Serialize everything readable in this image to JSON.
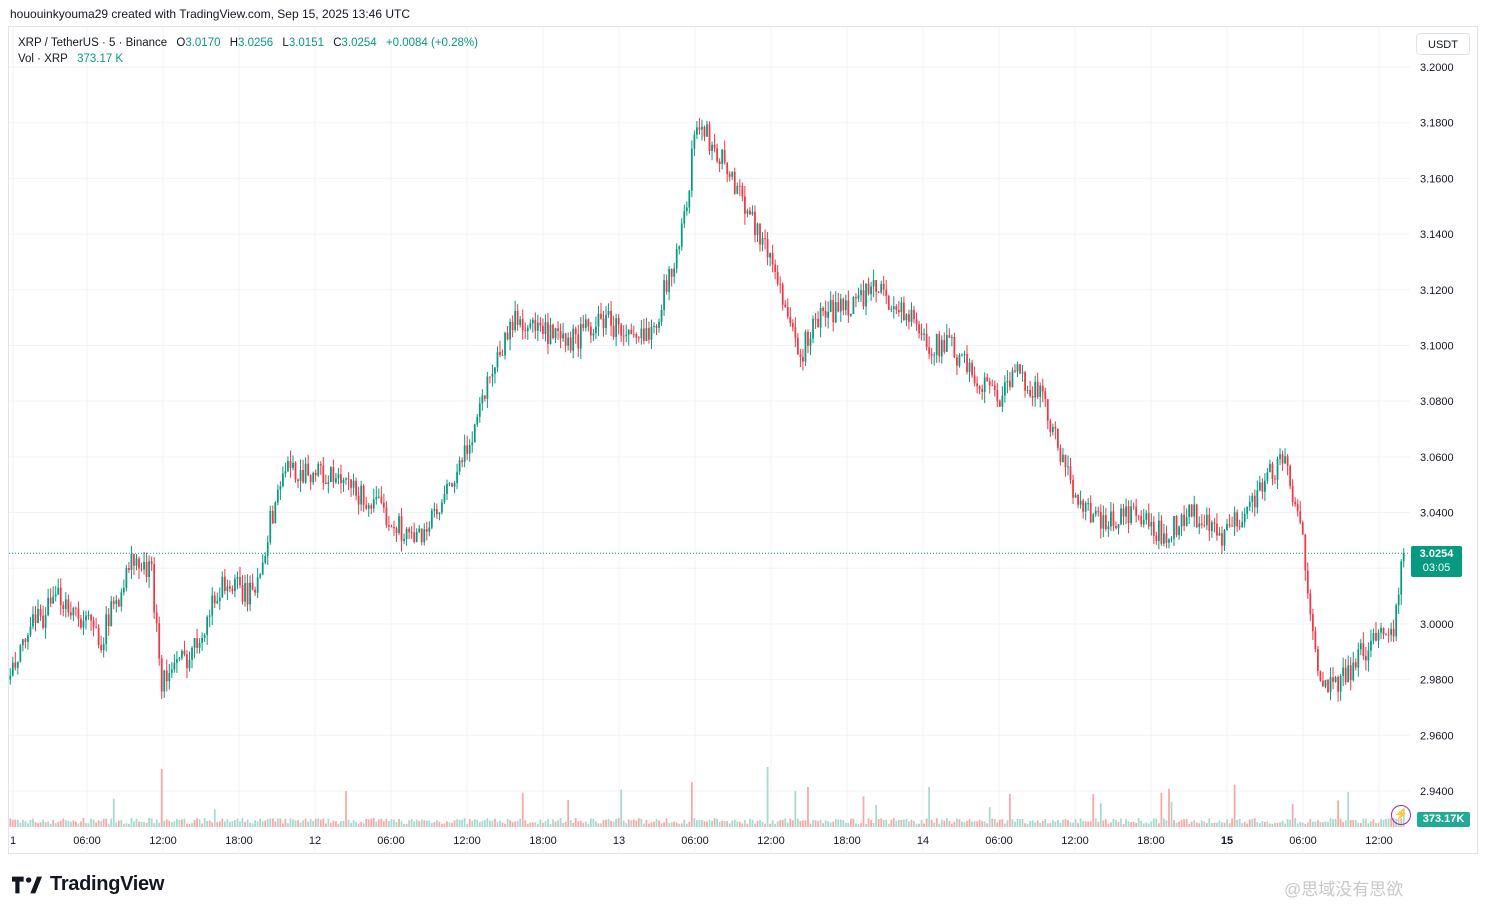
{
  "caption": "hououinkyouma29 created with TradingView.com, Sep 15, 2025 13:46 UTC",
  "legend": {
    "symbol": "XRP / TetherUS · 5 · Binance",
    "o_label": "O",
    "o_value": "3.0170",
    "h_label": "H",
    "h_value": "3.0256",
    "l_label": "L",
    "l_value": "3.0151",
    "c_label": "C",
    "c_value": "3.0254",
    "change": "+0.0084 (+0.28%)",
    "vol_label": "Vol · XRP",
    "vol_value": "373.17 K"
  },
  "currency_button": "USDT",
  "last_price": {
    "value": "3.0254",
    "countdown": "03:05"
  },
  "volume_tag": "373.17K",
  "brand": "TradingView",
  "watermark": "@思域没有思欲",
  "colors": {
    "up": "#089981",
    "down": "#f23645",
    "up_vol": "#a8d8d0",
    "down_vol": "#f7a9a7",
    "grid": "#f0f3fa"
  },
  "chart_data": {
    "type": "candlestick",
    "interval": "5",
    "ylim": [
      2.93,
      3.205
    ],
    "y_ticks": [
      "3.2000",
      "3.1800",
      "3.1600",
      "3.1400",
      "3.1200",
      "3.1000",
      "3.0800",
      "3.0600",
      "3.0400",
      "3.0200",
      "3.0000",
      "2.9800",
      "2.9600",
      "2.9400"
    ],
    "x_ticks": [
      "1",
      "06:00",
      "12:00",
      "18:00",
      "12",
      "06:00",
      "12:00",
      "18:00",
      "13",
      "06:00",
      "12:00",
      "18:00",
      "14",
      "06:00",
      "12:00",
      "18:00",
      "15",
      "06:00",
      "12:00"
    ],
    "last_price": 3.0254,
    "price_path": [
      [
        0,
        2.98
      ],
      [
        8,
        2.998
      ],
      [
        20,
        3.01
      ],
      [
        36,
        2.995
      ],
      [
        48,
        3.022
      ],
      [
        56,
        3.018
      ],
      [
        60,
        2.98
      ],
      [
        72,
        2.99
      ],
      [
        84,
        3.015
      ],
      [
        96,
        3.01
      ],
      [
        108,
        3.055
      ],
      [
        120,
        3.055
      ],
      [
        132,
        3.05
      ],
      [
        148,
        3.04
      ],
      [
        160,
        3.03
      ],
      [
        170,
        3.04
      ],
      [
        180,
        3.06
      ],
      [
        190,
        3.09
      ],
      [
        200,
        3.11
      ],
      [
        220,
        3.1
      ],
      [
        236,
        3.11
      ],
      [
        248,
        3.1
      ],
      [
        256,
        3.11
      ],
      [
        266,
        3.14
      ],
      [
        272,
        3.18
      ],
      [
        280,
        3.17
      ],
      [
        292,
        3.15
      ],
      [
        304,
        3.125
      ],
      [
        312,
        3.095
      ],
      [
        320,
        3.11
      ],
      [
        332,
        3.115
      ],
      [
        344,
        3.12
      ],
      [
        356,
        3.11
      ],
      [
        364,
        3.1
      ],
      [
        372,
        3.1
      ],
      [
        380,
        3.09
      ],
      [
        392,
        3.082
      ],
      [
        400,
        3.09
      ],
      [
        408,
        3.082
      ],
      [
        420,
        3.05
      ],
      [
        432,
        3.035
      ],
      [
        444,
        3.04
      ],
      [
        456,
        3.032
      ],
      [
        468,
        3.04
      ],
      [
        480,
        3.03
      ],
      [
        492,
        3.045
      ],
      [
        504,
        3.06
      ],
      [
        512,
        3.03
      ],
      [
        516,
        3.0
      ],
      [
        520,
        2.975
      ],
      [
        528,
        2.98
      ],
      [
        540,
        2.995
      ],
      [
        548,
        3.0
      ],
      [
        552,
        3.0254
      ]
    ]
  }
}
